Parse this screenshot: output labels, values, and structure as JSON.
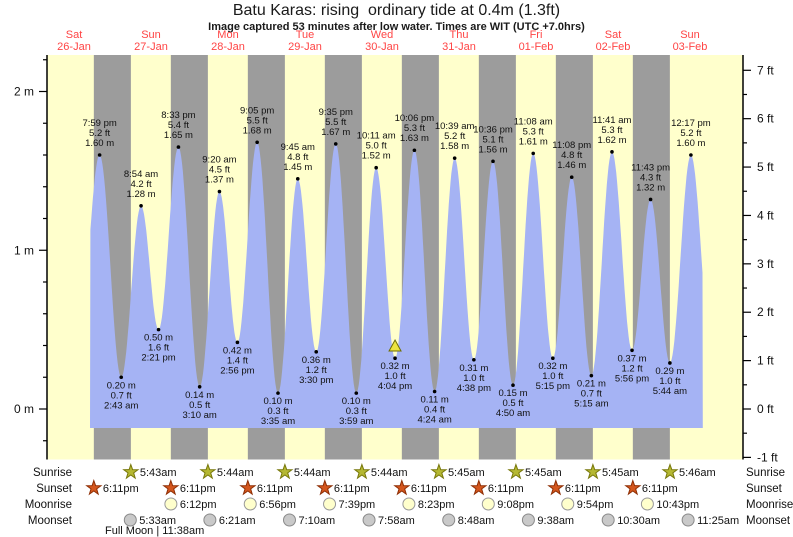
{
  "title": "Batu Karas: rising  ordinary tide at 0.4m (1.3ft)",
  "subtitle": "Image captured 53 minutes after low water. Times are WIT (UTC +7.0hrs)",
  "days": [
    {
      "dow": "Sat",
      "date": "26-Jan"
    },
    {
      "dow": "Sun",
      "date": "27-Jan"
    },
    {
      "dow": "Mon",
      "date": "28-Jan"
    },
    {
      "dow": "Tue",
      "date": "29-Jan"
    },
    {
      "dow": "Wed",
      "date": "30-Jan"
    },
    {
      "dow": "Thu",
      "date": "31-Jan"
    },
    {
      "dow": "Fri",
      "date": "01-Feb"
    },
    {
      "dow": "Sat",
      "date": "02-Feb"
    },
    {
      "dow": "Sun",
      "date": "03-Feb"
    }
  ],
  "y_axis_left": {
    "labels": [
      "2 m",
      "1 m",
      "0 m"
    ],
    "values_m": [
      2,
      1,
      0
    ]
  },
  "y_axis_right": {
    "labels": [
      "7 ft",
      "6 ft",
      "5 ft",
      "4 ft",
      "3 ft",
      "2 ft",
      "1 ft",
      "0 ft",
      "-1 ft"
    ],
    "values_ft": [
      7,
      6,
      5,
      4,
      3,
      2,
      1,
      0,
      -1
    ]
  },
  "chart_data": {
    "type": "area",
    "title": "Batu Karas: rising  ordinary tide at 0.4m (1.3ft)",
    "ylabel_left": "m",
    "ylabel_right": "ft",
    "ylim_m": [
      -0.32,
      2.23
    ],
    "grid": false,
    "extrema": [
      {
        "day": 0,
        "time": "7:59 pm",
        "ft": "5.2",
        "m": "1.60",
        "kind": "high"
      },
      {
        "day": 1,
        "time": "2:43 am",
        "ft": "0.7",
        "m": "0.20",
        "kind": "low"
      },
      {
        "day": 1,
        "time": "8:54 am",
        "ft": "4.2",
        "m": "1.28",
        "kind": "high"
      },
      {
        "day": 1,
        "time": "2:21 pm",
        "ft": "1.6",
        "m": "0.50",
        "kind": "low"
      },
      {
        "day": 1,
        "time": "8:33 pm",
        "ft": "5.4",
        "m": "1.65",
        "kind": "high"
      },
      {
        "day": 2,
        "time": "3:10 am",
        "ft": "0.5",
        "m": "0.14",
        "kind": "low"
      },
      {
        "day": 2,
        "time": "9:20 am",
        "ft": "4.5",
        "m": "1.37",
        "kind": "high"
      },
      {
        "day": 2,
        "time": "2:56 pm",
        "ft": "1.4",
        "m": "0.42",
        "kind": "low"
      },
      {
        "day": 2,
        "time": "9:05 pm",
        "ft": "5.5",
        "m": "1.68",
        "kind": "high"
      },
      {
        "day": 3,
        "time": "3:35 am",
        "ft": "0.3",
        "m": "0.10",
        "kind": "low"
      },
      {
        "day": 3,
        "time": "9:45 am",
        "ft": "4.8",
        "m": "1.45",
        "kind": "high"
      },
      {
        "day": 3,
        "time": "3:30 pm",
        "ft": "1.2",
        "m": "0.36",
        "kind": "low"
      },
      {
        "day": 3,
        "time": "9:35 pm",
        "ft": "5.5",
        "m": "1.67",
        "kind": "high"
      },
      {
        "day": 4,
        "time": "3:59 am",
        "ft": "0.3",
        "m": "0.10",
        "kind": "low"
      },
      {
        "day": 4,
        "time": "10:11 am",
        "ft": "5.0",
        "m": "1.52",
        "kind": "high"
      },
      {
        "day": 4,
        "time": "4:04 pm",
        "ft": "1.0",
        "m": "0.32",
        "kind": "low"
      },
      {
        "day": 4,
        "time": "10:06 pm",
        "ft": "5.3",
        "m": "1.63",
        "kind": "high"
      },
      {
        "day": 5,
        "time": "4:24 am",
        "ft": "0.4",
        "m": "0.11",
        "kind": "low"
      },
      {
        "day": 5,
        "time": "10:39 am",
        "ft": "5.2",
        "m": "1.58",
        "kind": "high"
      },
      {
        "day": 5,
        "time": "4:38 pm",
        "ft": "1.0",
        "m": "0.31",
        "kind": "low"
      },
      {
        "day": 5,
        "time": "10:36 pm",
        "ft": "5.1",
        "m": "1.56",
        "kind": "high"
      },
      {
        "day": 6,
        "time": "4:50 am",
        "ft": "0.5",
        "m": "0.15",
        "kind": "low"
      },
      {
        "day": 6,
        "time": "11:08 am",
        "ft": "5.3",
        "m": "1.61",
        "kind": "high"
      },
      {
        "day": 6,
        "time": "5:15 pm",
        "ft": "1.0",
        "m": "0.32",
        "kind": "low"
      },
      {
        "day": 6,
        "time": "11:08 pm",
        "ft": "4.8",
        "m": "1.46",
        "kind": "high"
      },
      {
        "day": 7,
        "time": "5:15 am",
        "ft": "0.7",
        "m": "0.21",
        "kind": "low"
      },
      {
        "day": 7,
        "time": "11:41 am",
        "ft": "5.3",
        "m": "1.62",
        "kind": "high"
      },
      {
        "day": 7,
        "time": "5:56 pm",
        "ft": "1.2",
        "m": "0.37",
        "kind": "low"
      },
      {
        "day": 7,
        "time": "11:43 pm",
        "ft": "4.3",
        "m": "1.32",
        "kind": "high"
      },
      {
        "day": 8,
        "time": "5:44 am",
        "ft": "1.0",
        "m": "0.29",
        "kind": "low"
      },
      {
        "day": 8,
        "time": "12:17 pm",
        "ft": "5.2",
        "m": "1.60",
        "kind": "high"
      }
    ],
    "current_marker": {
      "day": 4,
      "time": "4:04 pm"
    }
  },
  "astro": {
    "rows": [
      {
        "label": "Sunrise",
        "icon": "sunrise-star",
        "entries": [
          {
            "day": 1,
            "time": "5:43am"
          },
          {
            "day": 2,
            "time": "5:44am"
          },
          {
            "day": 3,
            "time": "5:44am"
          },
          {
            "day": 4,
            "time": "5:44am"
          },
          {
            "day": 5,
            "time": "5:45am"
          },
          {
            "day": 6,
            "time": "5:45am"
          },
          {
            "day": 7,
            "time": "5:45am"
          },
          {
            "day": 8,
            "time": "5:46am"
          }
        ]
      },
      {
        "label": "Sunset",
        "icon": "sunset-star",
        "entries": [
          {
            "day": 0,
            "time": "6:11pm"
          },
          {
            "day": 1,
            "time": "6:11pm"
          },
          {
            "day": 2,
            "time": "6:11pm"
          },
          {
            "day": 3,
            "time": "6:11pm"
          },
          {
            "day": 4,
            "time": "6:11pm"
          },
          {
            "day": 5,
            "time": "6:11pm"
          },
          {
            "day": 6,
            "time": "6:11pm"
          },
          {
            "day": 7,
            "time": "6:11pm"
          }
        ]
      },
      {
        "label": "Moonrise",
        "icon": "moonrise-circle",
        "entries": [
          {
            "day": 1,
            "time": "6:12pm"
          },
          {
            "day": 2,
            "time": "6:56pm"
          },
          {
            "day": 3,
            "time": "7:39pm"
          },
          {
            "day": 4,
            "time": "8:23pm"
          },
          {
            "day": 5,
            "time": "9:08pm"
          },
          {
            "day": 6,
            "time": "9:54pm"
          },
          {
            "day": 7,
            "time": "10:43pm"
          }
        ]
      },
      {
        "label": "Moonset",
        "icon": "moonset-circle",
        "entries": [
          {
            "day": 1,
            "time": "5:33am"
          },
          {
            "day": 2,
            "time": "6:21am"
          },
          {
            "day": 3,
            "time": "7:10am"
          },
          {
            "day": 4,
            "time": "7:58am"
          },
          {
            "day": 5,
            "time": "8:48am"
          },
          {
            "day": 6,
            "time": "9:38am"
          },
          {
            "day": 7,
            "time": "10:30am"
          },
          {
            "day": 8,
            "time": "11:25am"
          }
        ]
      }
    ]
  },
  "full_moon_note": "Full Moon | 11:38am",
  "colors": {
    "day_background": "#ffffcc",
    "night_band": "#9c9c9c",
    "tide_fill": "#a5b3f4",
    "day_label": "#ff4444",
    "sunrise_star_fill": "#b5b832",
    "sunrise_star_stroke": "#77770a",
    "sunset_star_fill": "#d4561d",
    "sunset_star_stroke": "#8e2f05",
    "moonrise_fill": "#ffffcc",
    "moonrise_stroke": "#999999",
    "moonset_fill": "#c9c9c9",
    "moonset_stroke": "#8a8a8a",
    "marker_fill": "#ece43f",
    "marker_stroke": "#6e6e00",
    "axis": "#000000"
  }
}
